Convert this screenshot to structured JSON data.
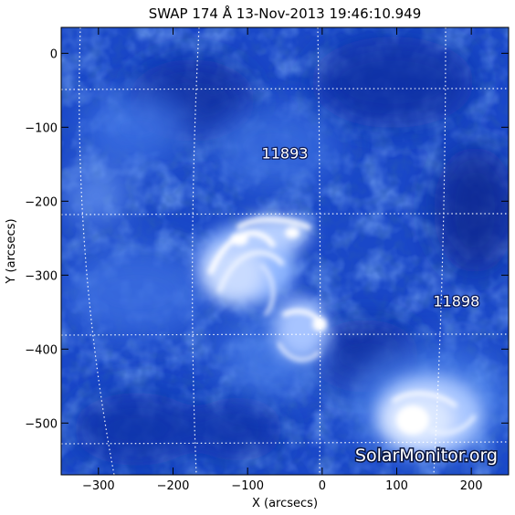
{
  "title": "SWAP 174 Å 13-Nov-2013 19:46:10.949",
  "axes": {
    "xlabel": "X (arcsecs)",
    "ylabel": "Y (arcsecs)",
    "xlim": [
      -350,
      250
    ],
    "ylim": [
      -570,
      35
    ],
    "xticks": [
      -300,
      -200,
      -100,
      0,
      100,
      200
    ],
    "yticks": [
      0,
      -100,
      -200,
      -300,
      -400,
      -500
    ]
  },
  "active_regions": [
    {
      "label": "11893",
      "x": -50,
      "y": -135
    },
    {
      "label": "11898",
      "x": 180,
      "y": -335
    }
  ],
  "watermark": "SolarMonitor.org",
  "colors": {
    "background_blue": "#1a48c8",
    "dark_blue": "#0a2a9a",
    "bright_region": "#e8f0ff",
    "grid": "#ffffff"
  }
}
